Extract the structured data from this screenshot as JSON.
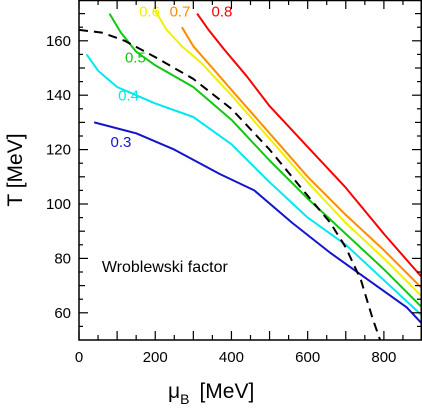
{
  "chart_data": {
    "type": "line",
    "title": "",
    "xlabel": "μB [MeV]",
    "xlabel_main": "μ",
    "xlabel_sub": "B",
    "xlabel_units": "[MeV]",
    "ylabel": "T [MeV]",
    "xlim": [
      0,
      900
    ],
    "ylim": [
      50,
      175
    ],
    "x_ticks": [
      0,
      200,
      400,
      600,
      800
    ],
    "y_ticks": [
      60,
      80,
      100,
      120,
      140,
      160
    ],
    "grid": false,
    "annotation": "Wroblewski factor",
    "series": [
      {
        "name": "0.3",
        "color": "#1414cc",
        "dashed": false,
        "label_at": [
          110,
          121
        ],
        "points": [
          [
            40,
            130
          ],
          [
            150,
            126
          ],
          [
            250,
            120
          ],
          [
            370,
            111
          ],
          [
            460,
            105
          ],
          [
            560,
            93
          ],
          [
            660,
            82
          ],
          [
            760,
            72
          ],
          [
            860,
            62
          ],
          [
            900,
            56
          ]
        ]
      },
      {
        "name": "0.4",
        "color": "#00e8f0",
        "dashed": false,
        "label_at": [
          130,
          138
        ],
        "points": [
          [
            20,
            155
          ],
          [
            50,
            149
          ],
          [
            100,
            143
          ],
          [
            200,
            137
          ],
          [
            300,
            132
          ],
          [
            400,
            122
          ],
          [
            500,
            108
          ],
          [
            600,
            95
          ],
          [
            700,
            85
          ],
          [
            800,
            72
          ],
          [
            900,
            59
          ]
        ]
      },
      {
        "name": "0.5",
        "color": "#10c810",
        "dashed": false,
        "label_at": [
          148,
          152
        ],
        "points": [
          [
            80,
            170
          ],
          [
            110,
            163
          ],
          [
            150,
            156
          ],
          [
            200,
            151
          ],
          [
            300,
            143
          ],
          [
            400,
            131
          ],
          [
            500,
            116
          ],
          [
            600,
            102
          ],
          [
            700,
            89
          ],
          [
            800,
            76
          ],
          [
            900,
            62
          ]
        ]
      },
      {
        "name": "0.6",
        "color": "#f0f000",
        "dashed": false,
        "label_at": [
          185,
          169
        ],
        "points": [
          [
            200,
            171
          ],
          [
            230,
            164
          ],
          [
            270,
            158
          ],
          [
            320,
            152
          ],
          [
            400,
            140
          ],
          [
            500,
            124
          ],
          [
            600,
            108
          ],
          [
            700,
            93
          ],
          [
            800,
            80
          ],
          [
            900,
            66
          ]
        ]
      },
      {
        "name": "0.7",
        "color": "#ff8c00",
        "dashed": false,
        "label_at": [
          265,
          169
        ],
        "points": [
          [
            270,
            165
          ],
          [
            300,
            158
          ],
          [
            350,
            150
          ],
          [
            400,
            142
          ],
          [
            500,
            126
          ],
          [
            600,
            110
          ],
          [
            700,
            96
          ],
          [
            800,
            83
          ],
          [
            900,
            69
          ]
        ]
      },
      {
        "name": "0.8",
        "color": "#ff0000",
        "dashed": false,
        "label_at": [
          375,
          169
        ],
        "points": [
          [
            310,
            170
          ],
          [
            340,
            164
          ],
          [
            380,
            157
          ],
          [
            440,
            147
          ],
          [
            500,
            136
          ],
          [
            600,
            121
          ],
          [
            700,
            106
          ],
          [
            800,
            89
          ],
          [
            900,
            73
          ]
        ]
      },
      {
        "name": "",
        "color": "#000000",
        "dashed": true,
        "points": [
          [
            0,
            164
          ],
          [
            60,
            163
          ],
          [
            120,
            160
          ],
          [
            200,
            154
          ],
          [
            300,
            146
          ],
          [
            400,
            135
          ],
          [
            500,
            120
          ],
          [
            600,
            103
          ],
          [
            660,
            93
          ],
          [
            700,
            84
          ],
          [
            740,
            72
          ],
          [
            770,
            58
          ],
          [
            790,
            50
          ]
        ]
      }
    ]
  }
}
